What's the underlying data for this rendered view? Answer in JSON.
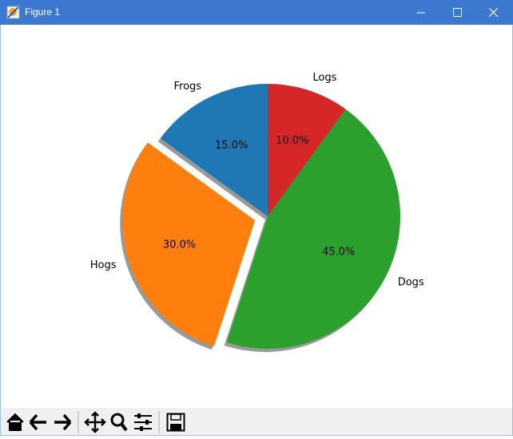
{
  "window": {
    "title": "Figure 1"
  },
  "chart_data": {
    "type": "pie",
    "categories": [
      "Frogs",
      "Hogs",
      "Dogs",
      "Logs"
    ],
    "values": [
      15,
      30,
      45,
      10
    ],
    "value_labels": [
      "15.0%",
      "30.0%",
      "45.0%",
      "10.0%"
    ],
    "colors": [
      "#1f77b4",
      "#ff7f0e",
      "#2ca02c",
      "#d62728"
    ],
    "explode": [
      0,
      0.1,
      0,
      0
    ],
    "startangle": 90,
    "counterclock": true,
    "shadow": true
  }
}
